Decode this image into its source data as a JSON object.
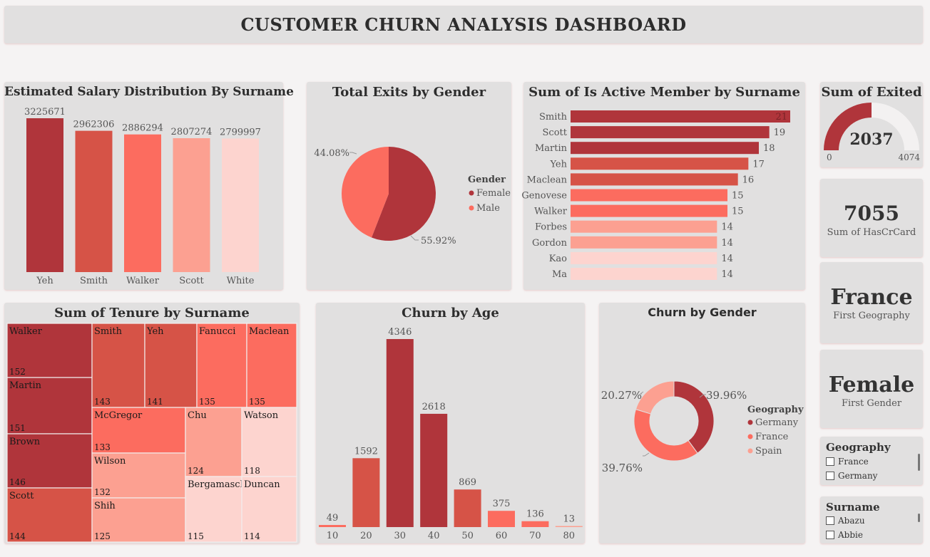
{
  "header": {
    "title": "CUSTOMER CHURN ANALYSIS DASHBOARD"
  },
  "colors": {
    "c1": "#b0353b",
    "c2": "#d65347",
    "c3": "#fc6c5f",
    "c4": "#fca091",
    "c5": "#fdd4cf",
    "panel": "#e1e0e0",
    "background": "#f5f3f3"
  },
  "salary": {
    "title": "Estimated Salary Distribution By Surname",
    "chart_data": {
      "type": "bar",
      "categories": [
        "Yeh",
        "Smith",
        "Walker",
        "Scott",
        "White"
      ],
      "values": [
        3225671,
        2962306,
        2886294,
        2807274,
        2799997
      ],
      "title": "Estimated Salary Distribution By Surname"
    }
  },
  "exits_gender": {
    "title": "Total Exits by Gender",
    "legend_title": "Gender",
    "chart_data": {
      "type": "pie",
      "categories": [
        "Female",
        "Male"
      ],
      "values": [
        55.92,
        44.08
      ],
      "labels": [
        "55.92%",
        "44.08%"
      ],
      "title": "Total Exits by Gender"
    }
  },
  "active_member": {
    "title": "Sum of Is Active Member by Surname",
    "chart_data": {
      "type": "bar",
      "orientation": "horizontal",
      "categories": [
        "Smith",
        "Scott",
        "Martin",
        "Yeh",
        "Maclean",
        "Genovese",
        "Walker",
        "Forbes",
        "Gordon",
        "Kao",
        "Ma"
      ],
      "values": [
        21,
        19,
        18,
        17,
        16,
        15,
        15,
        14,
        14,
        14,
        14
      ],
      "title": "Sum of Is Active Member by Surname"
    }
  },
  "exited_gauge": {
    "title": "Sum of Exited",
    "value": "2037",
    "min": "0",
    "max": "4074",
    "fraction": 0.5
  },
  "kpis": {
    "hascrcard": {
      "value": "7055",
      "label": "Sum of HasCrCard"
    },
    "geography": {
      "value": "France",
      "label": "First Geography"
    },
    "gender": {
      "value": "Female",
      "label": "First Gender"
    }
  },
  "tenure": {
    "title": "Sum of Tenure by Surname",
    "chart_data": {
      "type": "treemap",
      "categories": [
        "Walker",
        "Martin",
        "Brown",
        "Scott",
        "Smith",
        "Yeh",
        "Fanucci",
        "Maclean",
        "McGregor",
        "Wilson",
        "Shih",
        "Chu",
        "Watson",
        "Bergamaschi",
        "Duncan"
      ],
      "values": [
        152,
        151,
        146,
        144,
        143,
        141,
        135,
        135,
        133,
        132,
        125,
        124,
        118,
        115,
        114
      ],
      "title": "Sum of Tenure by Surname"
    }
  },
  "churn_age": {
    "title": "Churn by Age",
    "chart_data": {
      "type": "bar",
      "categories": [
        "10",
        "20",
        "30",
        "40",
        "50",
        "60",
        "70",
        "80"
      ],
      "values": [
        49,
        1592,
        4346,
        2618,
        869,
        375,
        136,
        13
      ],
      "title": "Churn by Age"
    }
  },
  "churn_gender": {
    "title": "Churn by Gender",
    "legend_title": "Geography",
    "chart_data": {
      "type": "pie",
      "style": "donut",
      "categories": [
        "Germany",
        "France",
        "Spain"
      ],
      "values": [
        39.96,
        39.76,
        20.27
      ],
      "labels": [
        "39.96%",
        "39.76%",
        "20.27%"
      ],
      "title": "Churn by Gender"
    }
  },
  "slicer_geography": {
    "title": "Geography",
    "items": [
      "France",
      "Germany"
    ]
  },
  "slicer_surname": {
    "title": "Surname",
    "items": [
      "Abazu",
      "Abbie"
    ]
  }
}
